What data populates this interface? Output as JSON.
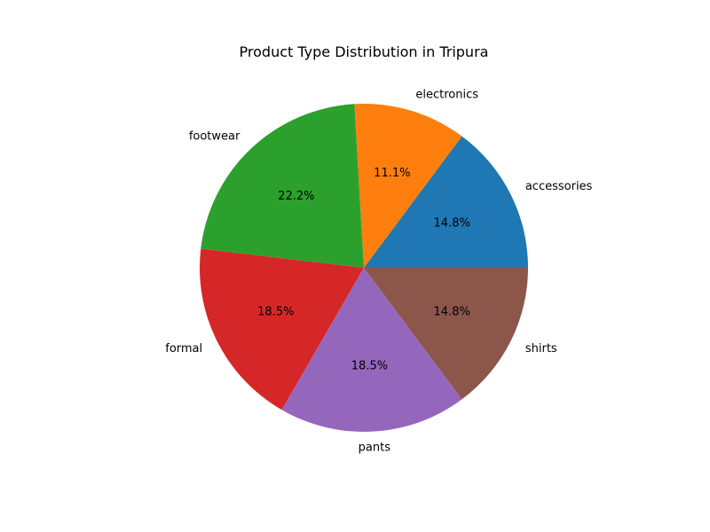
{
  "chart_data": {
    "type": "pie",
    "title": "Product Type Distribution in Tripura",
    "start_angle_deg": 0,
    "direction": "counterclockwise",
    "slices": [
      {
        "label": "accessories",
        "percent": 14.8,
        "percent_label": "14.8%",
        "color": "#1f77b4"
      },
      {
        "label": "electronics",
        "percent": 11.1,
        "percent_label": "11.1%",
        "color": "#ff7f0e"
      },
      {
        "label": "footwear",
        "percent": 22.2,
        "percent_label": "22.2%",
        "color": "#2ca02c"
      },
      {
        "label": "formal",
        "percent": 18.5,
        "percent_label": "18.5%",
        "color": "#d62728"
      },
      {
        "label": "pants",
        "percent": 18.5,
        "percent_label": "18.5%",
        "color": "#9467bd"
      },
      {
        "label": "shirts",
        "percent": 14.8,
        "percent_label": "14.8%",
        "color": "#8c564b"
      }
    ]
  }
}
